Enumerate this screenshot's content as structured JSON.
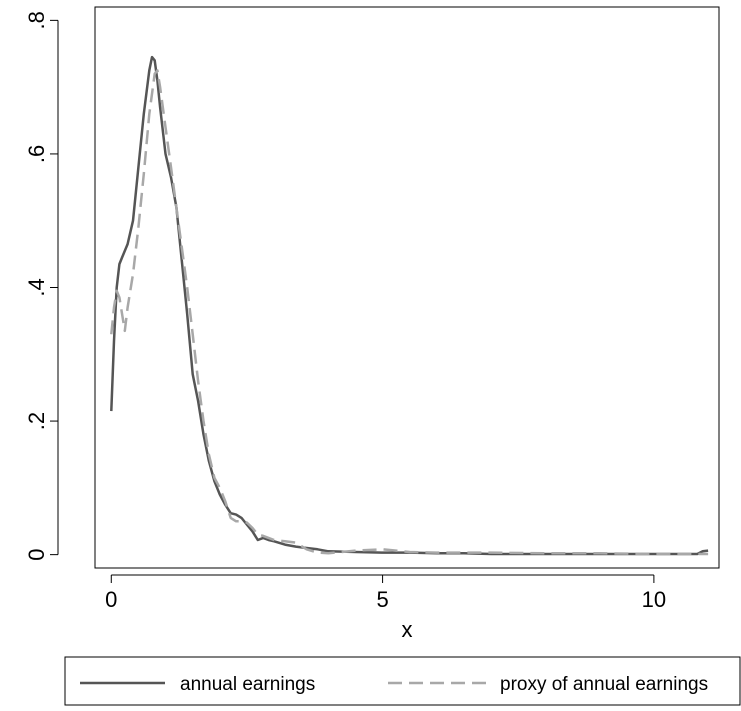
{
  "chart_data": {
    "type": "line",
    "xlabel": "x",
    "ylabel": "",
    "xlim": [
      -0.3,
      11.2
    ],
    "ylim": [
      -0.02,
      0.82
    ],
    "x_ticks": [
      0,
      5,
      10
    ],
    "x_tick_labels": [
      "0",
      "5",
      "10"
    ],
    "y_ticks": [
      0,
      0.2,
      0.4,
      0.6,
      0.8
    ],
    "y_tick_labels": [
      "0",
      ".2",
      ".4",
      ".6",
      ".8"
    ],
    "grid": false,
    "legend": "bottom",
    "series": [
      {
        "name": "annual earnings",
        "color": "#555555",
        "dash": "solid",
        "x": [
          0,
          0.05,
          0.1,
          0.15,
          0.2,
          0.3,
          0.4,
          0.5,
          0.6,
          0.7,
          0.75,
          0.8,
          0.85,
          0.9,
          1.0,
          1.1,
          1.2,
          1.3,
          1.4,
          1.5,
          1.6,
          1.7,
          1.8,
          1.9,
          2.0,
          2.1,
          2.2,
          2.3,
          2.4,
          2.5,
          2.6,
          2.7,
          2.8,
          2.9,
          3.0,
          3.2,
          3.4,
          3.6,
          3.8,
          4.0,
          4.5,
          5.0,
          5.5,
          6.0,
          6.5,
          7.0,
          8.0,
          9.0,
          10.0,
          10.8,
          10.9,
          11.0
        ],
        "y": [
          0.215,
          0.32,
          0.4,
          0.435,
          0.445,
          0.465,
          0.5,
          0.58,
          0.66,
          0.725,
          0.745,
          0.74,
          0.71,
          0.67,
          0.6,
          0.565,
          0.52,
          0.44,
          0.36,
          0.27,
          0.23,
          0.18,
          0.14,
          0.11,
          0.09,
          0.075,
          0.062,
          0.06,
          0.055,
          0.045,
          0.035,
          0.022,
          0.025,
          0.022,
          0.02,
          0.015,
          0.012,
          0.01,
          0.008,
          0.005,
          0.004,
          0.003,
          0.003,
          0.002,
          0.002,
          0.001,
          0.001,
          0.001,
          0.001,
          0.001,
          0.005,
          0.006
        ]
      },
      {
        "name": "proxy of annual earnings",
        "color": "#a8a8a8",
        "dash": "dashed",
        "x": [
          0,
          0.05,
          0.1,
          0.15,
          0.2,
          0.25,
          0.3,
          0.4,
          0.5,
          0.6,
          0.7,
          0.8,
          0.85,
          0.9,
          1.0,
          1.1,
          1.2,
          1.3,
          1.4,
          1.5,
          1.6,
          1.7,
          1.8,
          1.9,
          2.0,
          2.1,
          2.2,
          2.3,
          2.4,
          2.5,
          2.6,
          2.7,
          2.8,
          2.9,
          3.0,
          3.2,
          3.4,
          3.6,
          3.8,
          4.0,
          4.5,
          5.0,
          5.5,
          6.0,
          6.5,
          7.0,
          8.0,
          9.0,
          10.0,
          11.0
        ],
        "y": [
          0.33,
          0.37,
          0.395,
          0.385,
          0.36,
          0.335,
          0.37,
          0.42,
          0.49,
          0.57,
          0.66,
          0.72,
          0.725,
          0.7,
          0.64,
          0.58,
          0.52,
          0.46,
          0.4,
          0.33,
          0.26,
          0.2,
          0.15,
          0.115,
          0.1,
          0.08,
          0.055,
          0.05,
          0.05,
          0.048,
          0.04,
          0.03,
          0.028,
          0.025,
          0.022,
          0.02,
          0.018,
          0.008,
          0.003,
          0.002,
          0.006,
          0.008,
          0.004,
          0.003,
          0.003,
          0.003,
          0.002,
          0.002,
          0.001,
          0.001
        ]
      }
    ]
  }
}
